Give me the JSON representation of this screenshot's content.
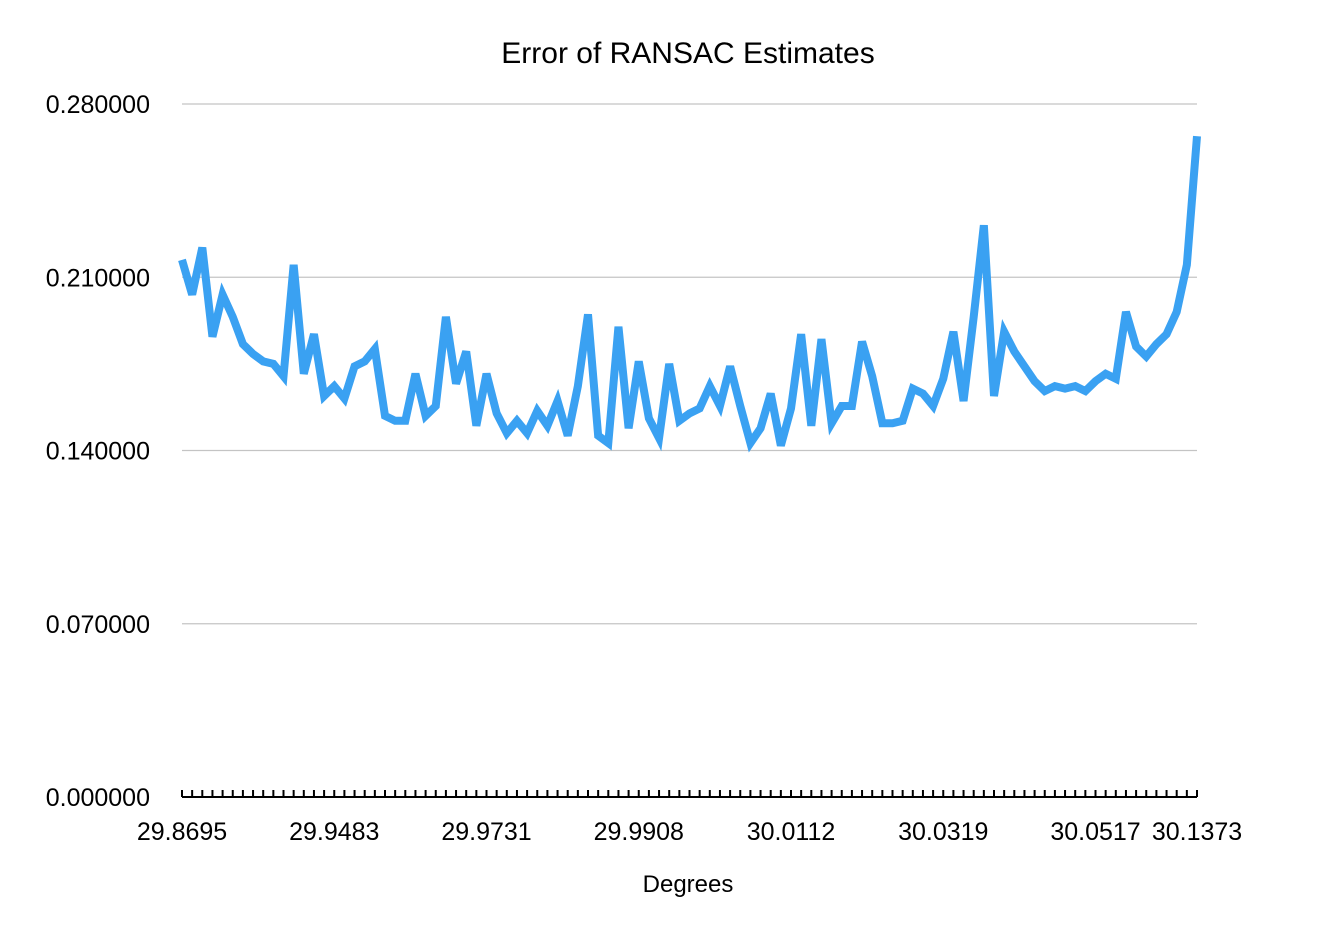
{
  "chart_data": {
    "type": "line",
    "title": "Error of RANSAC Estimates",
    "xlabel": "Degrees",
    "ylabel": "",
    "ylim": [
      0,
      0.28
    ],
    "y_ticks": [
      "0.000000",
      "0.070000",
      "0.140000",
      "0.210000",
      "0.280000"
    ],
    "y_tick_values": [
      0,
      0.07,
      0.14,
      0.21,
      0.28
    ],
    "x_ticks": [
      "29.8695",
      "29.9483",
      "29.9731",
      "29.9908",
      "30.0112",
      "30.0319",
      "30.0517",
      "30.1373"
    ],
    "x_tick_every": 15,
    "grid": "horizontal",
    "legend": "none",
    "series": [
      {
        "color": "#3aa1f2",
        "values": [
          0.217,
          0.203,
          0.222,
          0.186,
          0.203,
          0.194,
          0.183,
          0.179,
          0.176,
          0.175,
          0.17,
          0.215,
          0.171,
          0.187,
          0.162,
          0.166,
          0.161,
          0.174,
          0.176,
          0.181,
          0.154,
          0.152,
          0.152,
          0.171,
          0.154,
          0.158,
          0.194,
          0.167,
          0.18,
          0.15,
          0.171,
          0.155,
          0.147,
          0.152,
          0.147,
          0.156,
          0.15,
          0.16,
          0.146,
          0.166,
          0.195,
          0.146,
          0.143,
          0.19,
          0.149,
          0.176,
          0.153,
          0.145,
          0.175,
          0.152,
          0.155,
          0.157,
          0.166,
          0.158,
          0.174,
          0.158,
          0.143,
          0.149,
          0.163,
          0.142,
          0.157,
          0.187,
          0.15,
          0.185,
          0.151,
          0.158,
          0.158,
          0.184,
          0.17,
          0.151,
          0.151,
          0.152,
          0.165,
          0.163,
          0.158,
          0.169,
          0.188,
          0.16,
          0.194,
          0.231,
          0.162,
          0.188,
          0.18,
          0.174,
          0.168,
          0.164,
          0.166,
          0.165,
          0.166,
          0.164,
          0.168,
          0.171,
          0.169,
          0.196,
          0.182,
          0.178,
          0.183,
          0.187,
          0.196,
          0.215,
          0.267
        ]
      }
    ]
  }
}
